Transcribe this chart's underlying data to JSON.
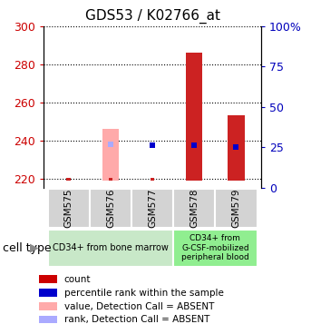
{
  "title": "GDS53 / K02766_at",
  "samples": [
    "GSM575",
    "GSM576",
    "GSM577",
    "GSM578",
    "GSM579"
  ],
  "ylim_left": [
    215,
    300
  ],
  "ylim_right": [
    0,
    100
  ],
  "yticks_left": [
    220,
    240,
    260,
    280,
    300
  ],
  "yticks_right": [
    0,
    25,
    50,
    75,
    100
  ],
  "ytick_labels_right": [
    "0",
    "25",
    "50",
    "75",
    "100%"
  ],
  "count_color": "#cc2222",
  "percentile_color": "#0000cc",
  "absent_value_color": "#ffaaaa",
  "absent_rank_color": "#aaaaff",
  "bar_width": 0.4,
  "left_ytick_color": "#cc0000",
  "right_ytick_color": "#0000bb",
  "group1_label": "CD34+ from bone marrow",
  "group2_label": "CD34+ from\nG-CSF-mobilized\nperipheral blood",
  "group1_color": "#c8e8c8",
  "group2_color": "#90ee90",
  "cell_type_label": "cell type",
  "legend_items": [
    {
      "color": "#cc0000",
      "label": "count"
    },
    {
      "color": "#0000cc",
      "label": "percentile rank within the sample"
    },
    {
      "color": "#ffaaaa",
      "label": "value, Detection Call = ABSENT"
    },
    {
      "color": "#aaaaff",
      "label": "rank, Detection Call = ABSENT"
    }
  ]
}
